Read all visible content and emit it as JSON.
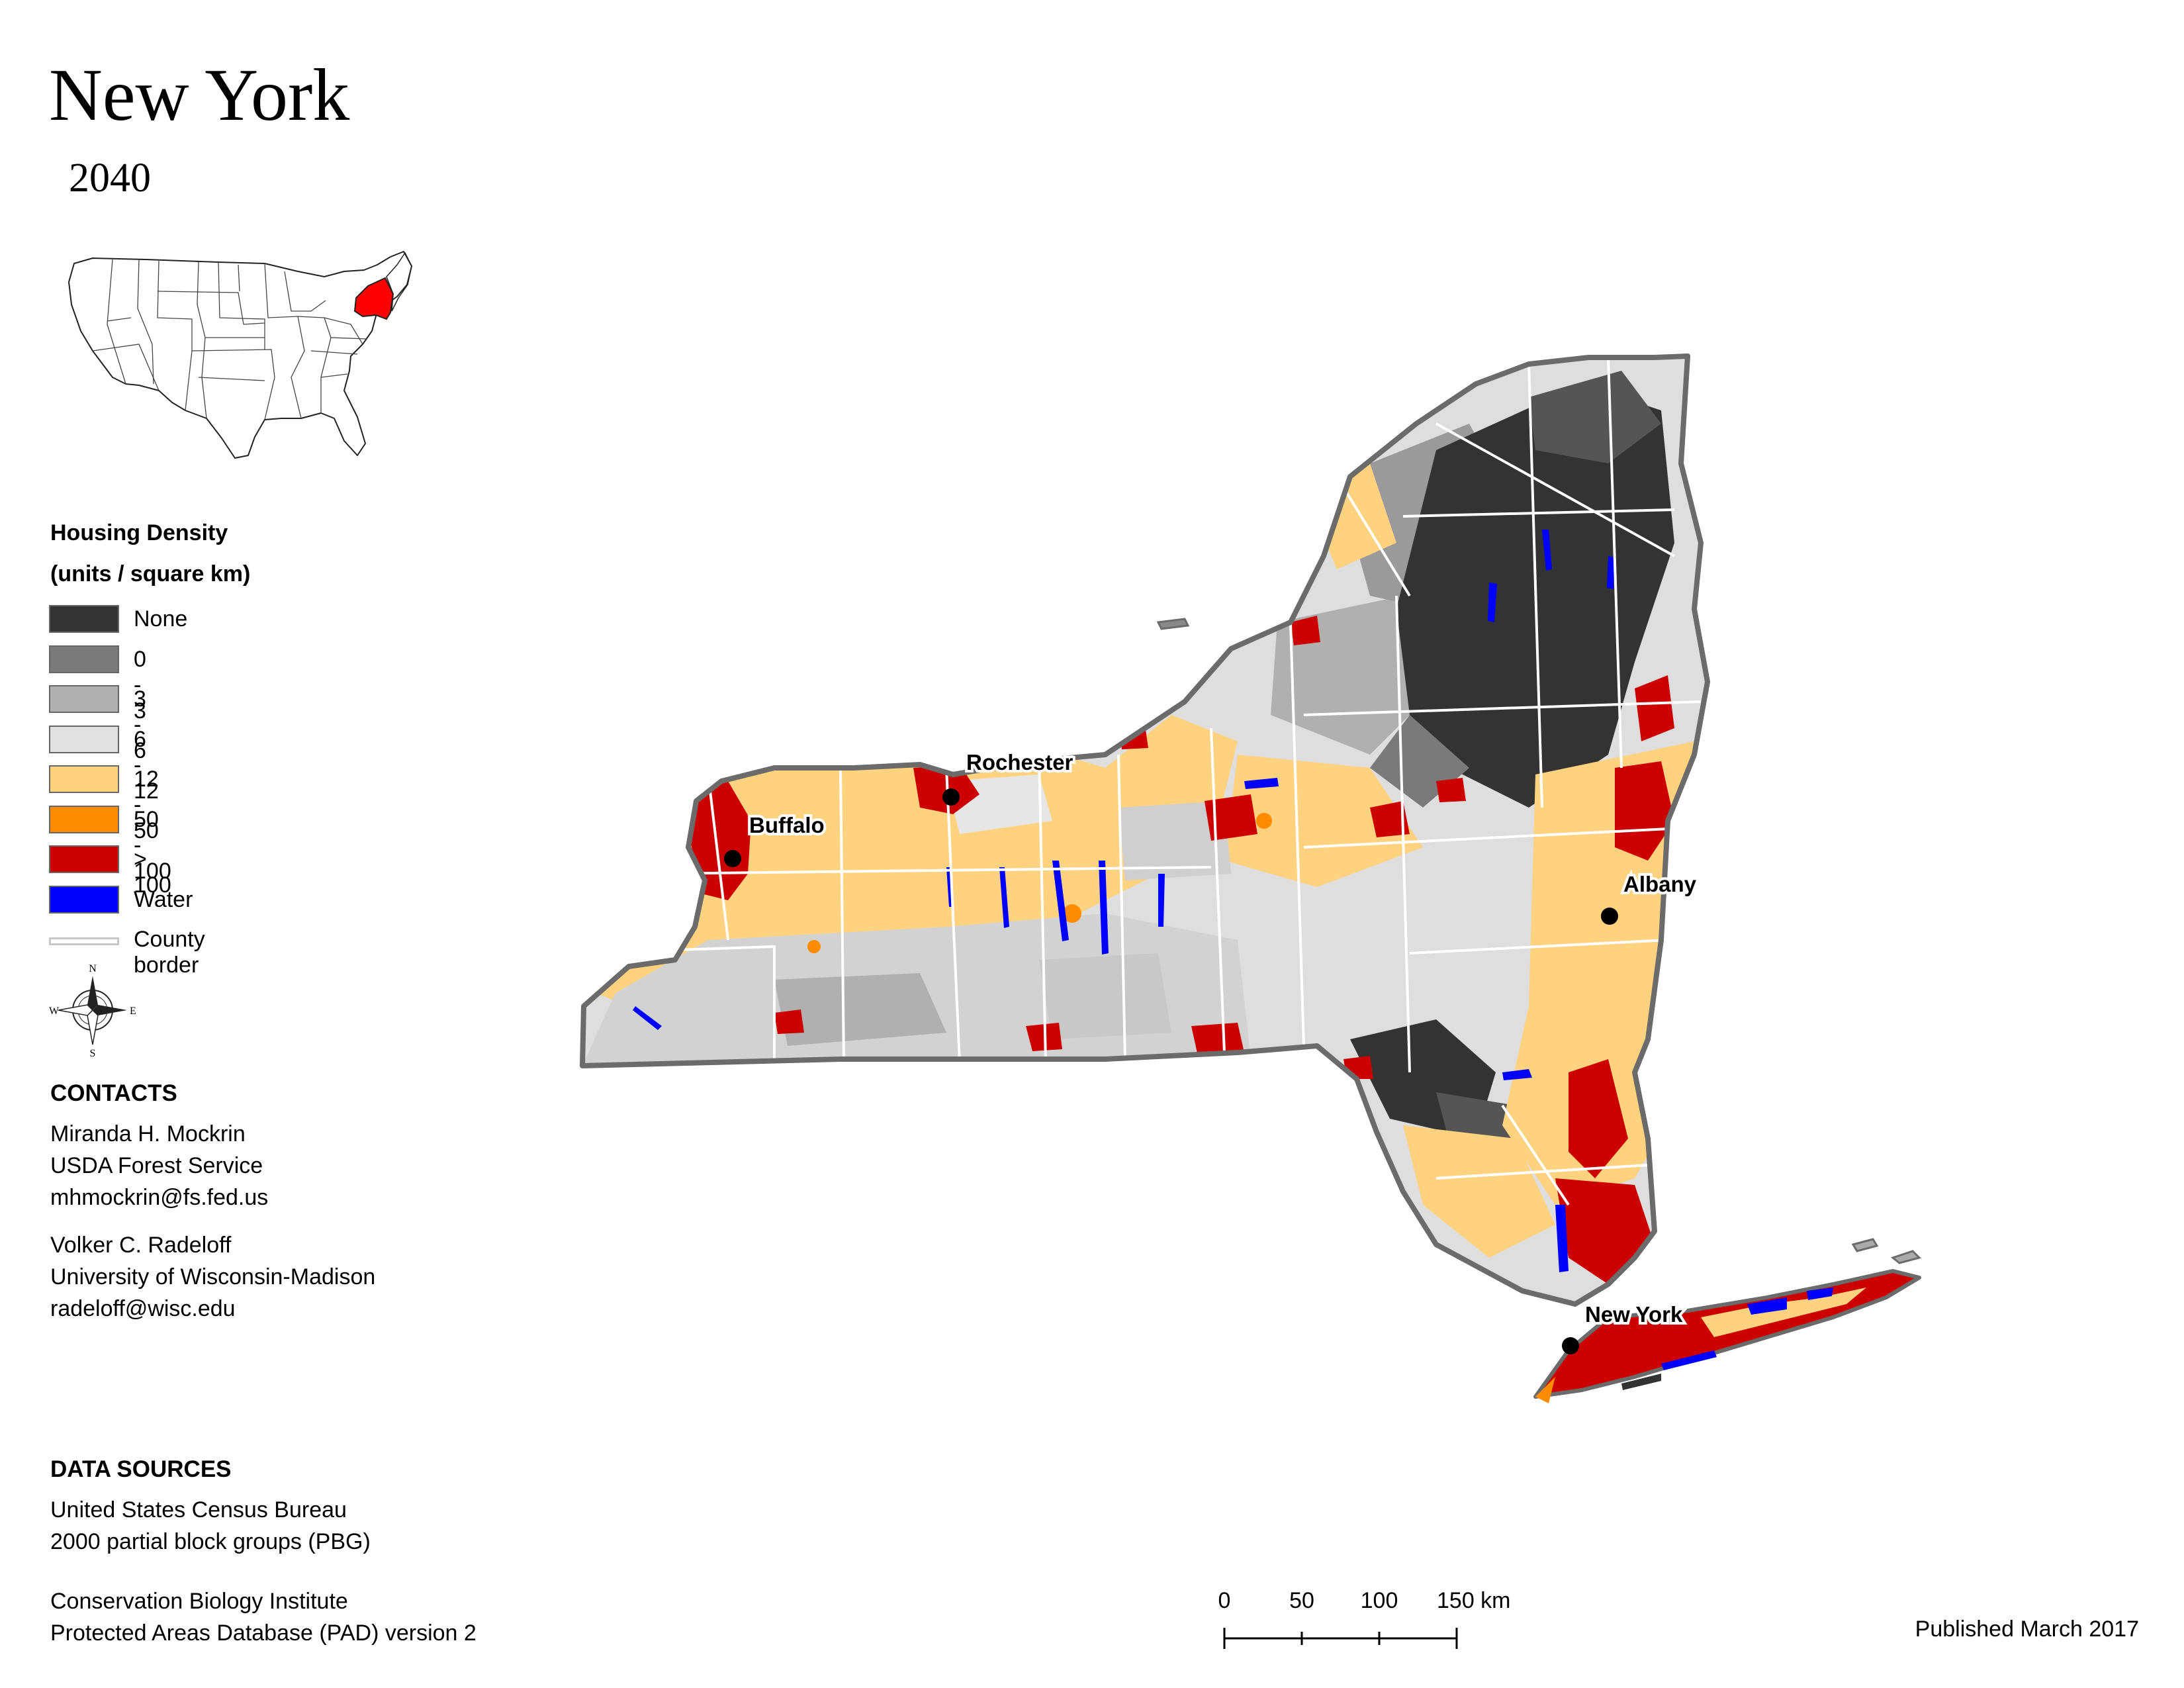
{
  "map": {
    "title": "New York",
    "subtitle": "2040"
  },
  "legend": {
    "heading_line1": "Housing Density",
    "heading_line2": "(units / square km)",
    "items": [
      {
        "label": "None",
        "color": "#333333"
      },
      {
        "label": "0 - 3",
        "color": "#7a7a7a"
      },
      {
        "label": "3 - 6",
        "color": "#b0b0b0"
      },
      {
        "label": "6 - 12",
        "color": "#e1e1e1"
      },
      {
        "label": "12 - 50",
        "color": "#ffd27f"
      },
      {
        "label": "50 - 100",
        "color": "#ff8c00"
      },
      {
        "label": "> 100",
        "color": "#cc0000"
      },
      {
        "label": "Water",
        "color": "#0000ff"
      },
      {
        "label": "County border",
        "color": "#c8c8c8"
      }
    ]
  },
  "compass": {
    "n": "N",
    "s": "S",
    "e": "E",
    "w": "W"
  },
  "cities": {
    "buffalo": "Buffalo",
    "rochester": "Rochester",
    "albany": "Albany",
    "new_york": "New York"
  },
  "contacts": {
    "heading": "CONTACTS",
    "people": [
      {
        "name": "Miranda H. Mockrin",
        "org": "USDA Forest Service",
        "email": "mhmockrin@fs.fed.us"
      },
      {
        "name": "Volker C. Radeloff",
        "org": "University of Wisconsin-Madison",
        "email": "radeloff@wisc.edu"
      }
    ]
  },
  "data_sources": {
    "heading": "DATA SOURCES",
    "lines": [
      "United States Census Bureau",
      "2000 partial block groups (PBG)",
      "Conservation Biology Institute",
      "Protected Areas Database (PAD) version 2"
    ]
  },
  "scale_bar": {
    "ticks": [
      "0",
      "50",
      "100",
      "150 km"
    ]
  },
  "published": "Published March 2017"
}
